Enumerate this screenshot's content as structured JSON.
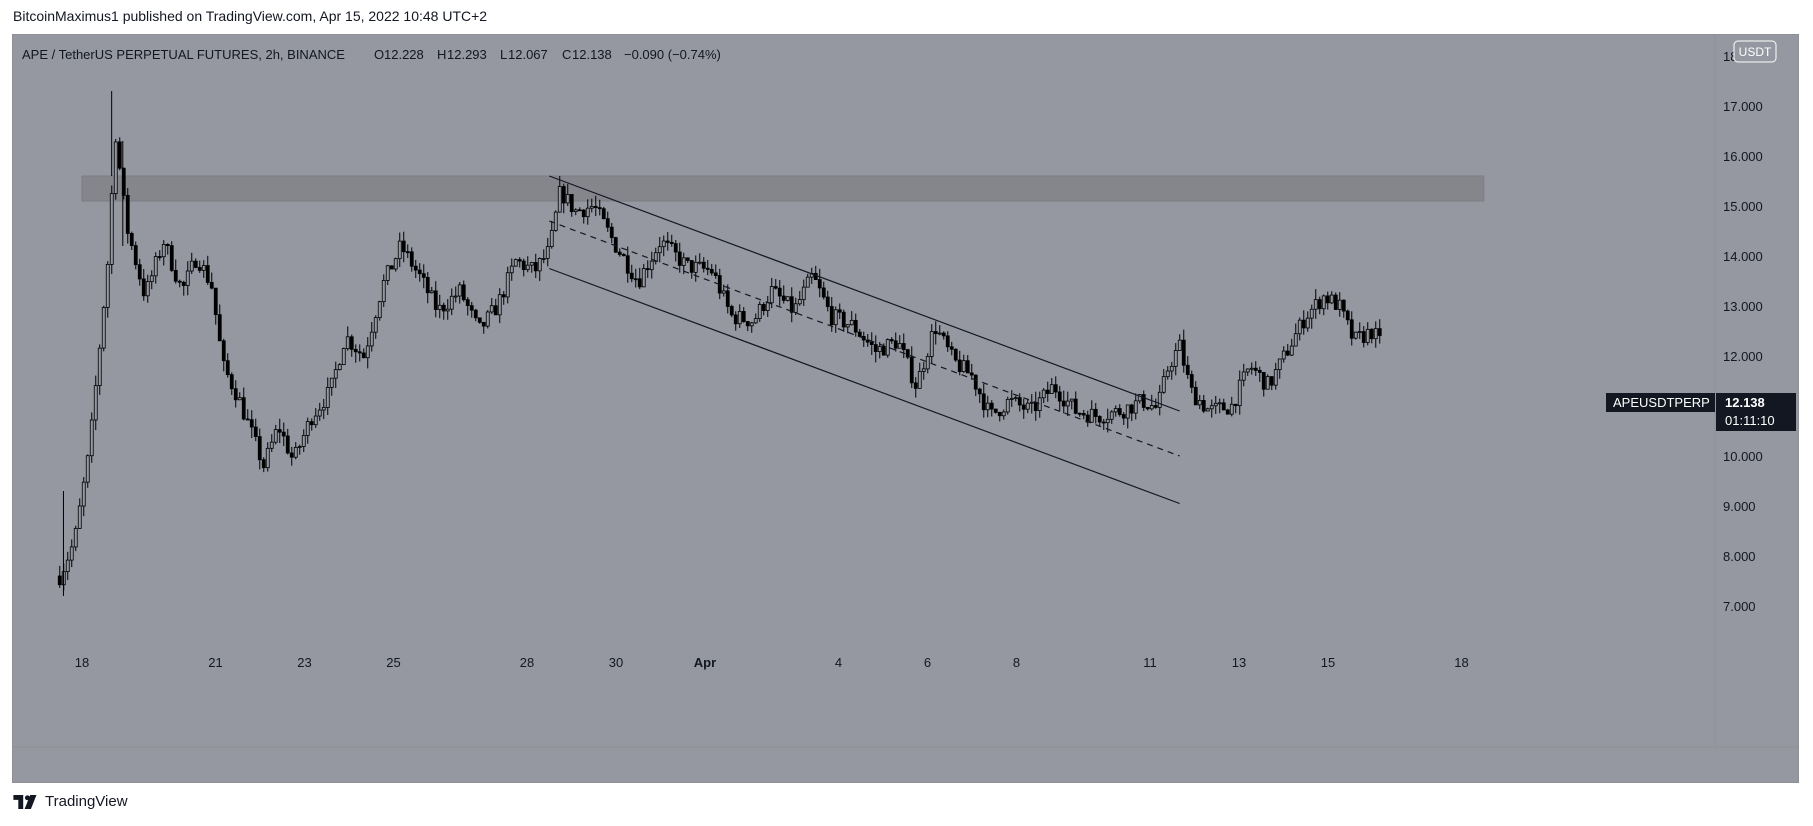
{
  "attribution": "BitcoinMaximus1 published on TradingView.com, Apr 15, 2022 10:48 UTC+2",
  "brand": "TradingView",
  "header": {
    "symbol": "APE / TetherUS PERPETUAL FUTURES, 2h, BINANCE",
    "o_label": "O",
    "o_value": "12.228",
    "h_label": "H",
    "h_value": "12.293",
    "l_label": "L",
    "l_value": "12.067",
    "c_label": "C",
    "c_value": "12.138",
    "change": "−0.090 (−0.74%)"
  },
  "price_axis": {
    "currency": "USDT"
  },
  "last_price": {
    "ticker": "APEUSDTPERP",
    "value": "12.138",
    "countdown": "01:11:10"
  },
  "colors": {
    "background": "#9598a1",
    "candle": "#000000",
    "zone": "#85868c",
    "label_bg": "#131722"
  },
  "chart_data": {
    "type": "candlestick",
    "timeframe": "2h",
    "ylim": [
      6.0,
      19.0
    ],
    "y_ticks": [
      7.0,
      8.0,
      9.0,
      10.0,
      11.0,
      12.0,
      13.0,
      14.0,
      15.0,
      16.0,
      17.0,
      18.0
    ],
    "y_tick_labels": [
      "7.000",
      "8.000",
      "9.000",
      "10.000",
      "11.000",
      "12.000",
      "13.000",
      "14.000",
      "15.000",
      "16.000",
      "17.000",
      "18.000"
    ],
    "x_ticks": [
      {
        "label": "18",
        "date": "2022-03-18"
      },
      {
        "label": "21",
        "date": "2022-03-21"
      },
      {
        "label": "23",
        "date": "2022-03-23"
      },
      {
        "label": "25",
        "date": "2022-03-25"
      },
      {
        "label": "28",
        "date": "2022-03-28"
      },
      {
        "label": "30",
        "date": "2022-03-30"
      },
      {
        "label": "Apr",
        "date": "2022-04-01"
      },
      {
        "label": "4",
        "date": "2022-04-04"
      },
      {
        "label": "6",
        "date": "2022-04-06"
      },
      {
        "label": "8",
        "date": "2022-04-08"
      },
      {
        "label": "11",
        "date": "2022-04-11"
      },
      {
        "label": "13",
        "date": "2022-04-13"
      },
      {
        "label": "15",
        "date": "2022-04-15"
      },
      {
        "label": "18",
        "date": "2022-04-18"
      }
    ],
    "path": [
      [
        "2022-03-17 12:00",
        7.6
      ],
      [
        "2022-03-17 20:00",
        8.3
      ],
      [
        "2022-03-18 04:00",
        10.1
      ],
      [
        "2022-03-18 08:00",
        11.6
      ],
      [
        "2022-03-18 14:00",
        13.9
      ],
      [
        "2022-03-18 18:00",
        16.5
      ],
      [
        "2022-03-19 00:00",
        14.6
      ],
      [
        "2022-03-19 10:00",
        13.2
      ],
      [
        "2022-03-19 20:00",
        14.3
      ],
      [
        "2022-03-20 06:00",
        13.3
      ],
      [
        "2022-03-20 14:00",
        14.0
      ],
      [
        "2022-03-20 22:00",
        13.4
      ],
      [
        "2022-03-21 04:00",
        11.8
      ],
      [
        "2022-03-21 12:00",
        11.2
      ],
      [
        "2022-03-21 20:00",
        10.4
      ],
      [
        "2022-03-22 02:00",
        9.8
      ],
      [
        "2022-03-22 10:00",
        10.6
      ],
      [
        "2022-03-22 18:00",
        9.9
      ],
      [
        "2022-03-23 04:00",
        10.8
      ],
      [
        "2022-03-23 14:00",
        11.3
      ],
      [
        "2022-03-23 22:00",
        12.4
      ],
      [
        "2022-03-24 08:00",
        12.0
      ],
      [
        "2022-03-24 18:00",
        13.4
      ],
      [
        "2022-03-25 04:00",
        14.2
      ],
      [
        "2022-03-25 14:00",
        13.6
      ],
      [
        "2022-03-26 00:00",
        12.9
      ],
      [
        "2022-03-26 12:00",
        13.3
      ],
      [
        "2022-03-26 22:00",
        12.5
      ],
      [
        "2022-03-27 08:00",
        13.0
      ],
      [
        "2022-03-27 18:00",
        13.9
      ],
      [
        "2022-03-28 04:00",
        13.7
      ],
      [
        "2022-03-28 12:00",
        14.1
      ],
      [
        "2022-03-28 18:00",
        15.3
      ],
      [
        "2022-03-29 02:00",
        14.9
      ],
      [
        "2022-03-29 12:00",
        15.0
      ],
      [
        "2022-03-30 00:00",
        14.2
      ],
      [
        "2022-03-30 12:00",
        13.5
      ],
      [
        "2022-03-31 00:00",
        14.3
      ],
      [
        "2022-03-31 14:00",
        13.8
      ],
      [
        "2022-04-01 04:00",
        13.7
      ],
      [
        "2022-04-01 14:00",
        12.8
      ],
      [
        "2022-04-02 02:00",
        12.7
      ],
      [
        "2022-04-02 12:00",
        13.3
      ],
      [
        "2022-04-03 00:00",
        12.9
      ],
      [
        "2022-04-03 10:00",
        13.6
      ],
      [
        "2022-04-03 20:00",
        12.8
      ],
      [
        "2022-04-04 08:00",
        12.6
      ],
      [
        "2022-04-04 20:00",
        12.1
      ],
      [
        "2022-04-05 08:00",
        12.3
      ],
      [
        "2022-04-05 18:00",
        11.4
      ],
      [
        "2022-04-06 04:00",
        12.6
      ],
      [
        "2022-04-06 14:00",
        11.9
      ],
      [
        "2022-04-07 00:00",
        11.6
      ],
      [
        "2022-04-07 10:00",
        10.8
      ],
      [
        "2022-04-07 20:00",
        11.1
      ],
      [
        "2022-04-08 08:00",
        10.9
      ],
      [
        "2022-04-08 20:00",
        11.4
      ],
      [
        "2022-04-09 08:00",
        10.9
      ],
      [
        "2022-04-09 20:00",
        10.8
      ],
      [
        "2022-04-10 08:00",
        10.9
      ],
      [
        "2022-04-10 20:00",
        11.1
      ],
      [
        "2022-04-11 04:00",
        10.95
      ],
      [
        "2022-04-11 10:00",
        11.8
      ],
      [
        "2022-04-11 16:00",
        12.2
      ],
      [
        "2022-04-11 22:00",
        11.3
      ],
      [
        "2022-04-12 08:00",
        10.9
      ],
      [
        "2022-04-12 20:00",
        11.0
      ],
      [
        "2022-04-13 06:00",
        11.8
      ],
      [
        "2022-04-13 16:00",
        11.4
      ],
      [
        "2022-04-14 02:00",
        12.1
      ],
      [
        "2022-04-14 12:00",
        12.8
      ],
      [
        "2022-04-14 22:00",
        13.2
      ],
      [
        "2022-04-15 06:00",
        13.0
      ],
      [
        "2022-04-15 14:00",
        12.3
      ],
      [
        "2022-04-16 00:00",
        12.5
      ],
      [
        "2022-04-16 06:00",
        12.14
      ]
    ],
    "spikes": [
      [
        "2022-03-18 16:00",
        17.3,
        15.6
      ],
      [
        "2022-03-18 22:00",
        16.3,
        14.2
      ],
      [
        "2022-03-17 14:00",
        9.3,
        7.2
      ]
    ],
    "resistance_zone": {
      "from": "2022-03-18 00:00",
      "to": "2022-04-18 12:00",
      "low": 15.1,
      "high": 15.6
    },
    "channel": {
      "upper": [
        [
          "2022-03-28 12:00",
          15.6
        ],
        [
          "2022-04-11 16:00",
          10.9
        ]
      ],
      "middle": [
        [
          "2022-03-28 12:00",
          14.7
        ],
        [
          "2022-04-11 16:00",
          10.0
        ]
      ],
      "lower": [
        [
          "2022-03-28 12:00",
          13.75
        ],
        [
          "2022-04-11 16:00",
          9.05
        ]
      ]
    }
  }
}
